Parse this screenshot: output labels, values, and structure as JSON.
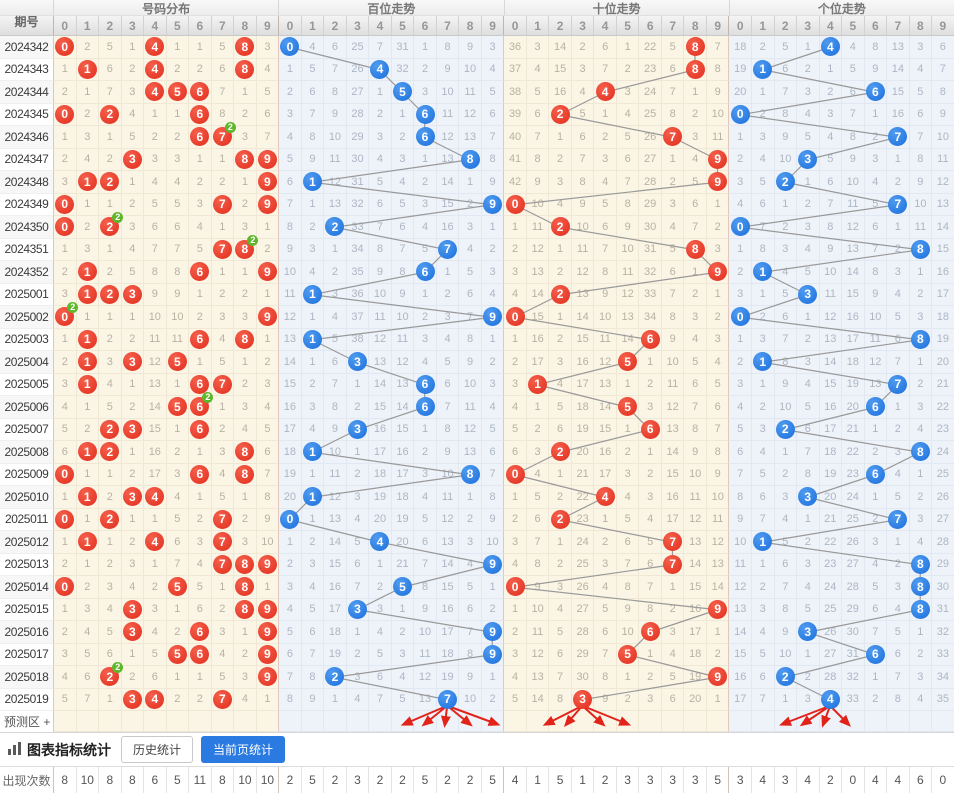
{
  "header": {
    "issue_col": "期号",
    "digits": [
      "0",
      "1",
      "2",
      "3",
      "4",
      "5",
      "6",
      "7",
      "8",
      "9"
    ],
    "sections": [
      {
        "label": "号码分布"
      },
      {
        "label": "百位走势"
      },
      {
        "label": "十位走势"
      },
      {
        "label": "个位走势"
      }
    ]
  },
  "colors": {
    "red_ball": "#e93a2b",
    "blue_ball": "#2277e0",
    "green_badge": "#5eb72a",
    "trend_line": "#999999",
    "arrow_red": "#e2231a",
    "active_button": "#2b7ae2"
  },
  "dup_badge_text": "2",
  "rows": [
    {
      "issue": "2024342",
      "dist": [
        "B",
        2,
        5,
        1,
        "B",
        1,
        1,
        5,
        "B",
        3
      ],
      "bai": [
        "B",
        4,
        6,
        25,
        7,
        31,
        1,
        8,
        9,
        3
      ],
      "shi": [
        36,
        3,
        14,
        2,
        6,
        1,
        22,
        5,
        "B",
        7
      ],
      "ge": [
        18,
        2,
        5,
        1,
        "B",
        4,
        8,
        13,
        3,
        6
      ]
    },
    {
      "issue": "2024343",
      "dist": [
        1,
        "B",
        6,
        2,
        "B",
        2,
        2,
        6,
        "B",
        4
      ],
      "bai": [
        1,
        5,
        7,
        26,
        "B",
        32,
        2,
        9,
        10,
        4
      ],
      "shi": [
        37,
        4,
        15,
        3,
        7,
        2,
        23,
        6,
        "B",
        8
      ],
      "ge": [
        19,
        "B",
        6,
        2,
        1,
        5,
        9,
        14,
        4,
        7
      ]
    },
    {
      "issue": "2024344",
      "dist": [
        2,
        1,
        7,
        3,
        "B",
        "B",
        "B",
        7,
        1,
        5
      ],
      "bai": [
        2,
        6,
        8,
        27,
        1,
        "B",
        3,
        10,
        11,
        5
      ],
      "shi": [
        38,
        5,
        16,
        4,
        "B",
        3,
        24,
        7,
        1,
        9
      ],
      "ge": [
        20,
        1,
        7,
        3,
        2,
        6,
        "B",
        15,
        5,
        8
      ]
    },
    {
      "issue": "2024345",
      "dist": [
        "B",
        2,
        "B",
        4,
        1,
        1,
        "B",
        8,
        2,
        6
      ],
      "bai": [
        3,
        7,
        9,
        28,
        2,
        1,
        "B",
        11,
        12,
        6
      ],
      "shi": [
        39,
        6,
        "B",
        5,
        1,
        4,
        25,
        8,
        2,
        10
      ],
      "ge": [
        "B",
        2,
        8,
        4,
        3,
        7,
        1,
        16,
        6,
        9
      ]
    },
    {
      "issue": "2024346",
      "dup": 7,
      "dist": [
        1,
        3,
        1,
        5,
        2,
        2,
        "B",
        "B",
        3,
        7
      ],
      "bai": [
        4,
        8,
        10,
        29,
        3,
        2,
        "B",
        12,
        13,
        7
      ],
      "shi": [
        40,
        7,
        1,
        6,
        2,
        5,
        26,
        "B",
        3,
        11
      ],
      "ge": [
        1,
        3,
        9,
        5,
        4,
        8,
        2,
        "B",
        7,
        10
      ]
    },
    {
      "issue": "2024347",
      "dist": [
        2,
        4,
        2,
        "B",
        3,
        3,
        1,
        1,
        "B",
        "B"
      ],
      "bai": [
        5,
        9,
        11,
        30,
        4,
        3,
        1,
        13,
        "B",
        8
      ],
      "shi": [
        41,
        8,
        2,
        7,
        3,
        6,
        27,
        1,
        4,
        "B"
      ],
      "ge": [
        2,
        4,
        10,
        "B",
        5,
        9,
        3,
        1,
        8,
        11
      ]
    },
    {
      "issue": "2024348",
      "dist": [
        3,
        "B",
        "B",
        1,
        4,
        4,
        2,
        2,
        1,
        "B"
      ],
      "bai": [
        6,
        "B",
        12,
        31,
        5,
        4,
        2,
        14,
        1,
        9
      ],
      "shi": [
        42,
        9,
        3,
        8,
        4,
        7,
        28,
        2,
        5,
        "B"
      ],
      "ge": [
        3,
        5,
        "B",
        1,
        6,
        10,
        4,
        2,
        9,
        12
      ]
    },
    {
      "issue": "2024349",
      "dist": [
        "B",
        1,
        1,
        2,
        5,
        5,
        3,
        "B",
        2,
        "B"
      ],
      "bai": [
        7,
        1,
        13,
        32,
        6,
        5,
        3,
        15,
        2,
        "B"
      ],
      "shi": [
        "B",
        10,
        4,
        9,
        5,
        8,
        29,
        3,
        6,
        1
      ],
      "ge": [
        4,
        6,
        1,
        2,
        7,
        11,
        5,
        "B",
        10,
        13
      ]
    },
    {
      "issue": "2024350",
      "dup": 2,
      "dist": [
        "B",
        2,
        "B",
        3,
        6,
        6,
        4,
        1,
        3,
        1
      ],
      "bai": [
        8,
        2,
        "B",
        33,
        7,
        6,
        4,
        16,
        3,
        1
      ],
      "shi": [
        1,
        11,
        "B",
        10,
        6,
        9,
        30,
        4,
        7,
        2
      ],
      "ge": [
        "B",
        7,
        2,
        3,
        8,
        12,
        6,
        1,
        11,
        14
      ]
    },
    {
      "issue": "2024351",
      "dup": 8,
      "dist": [
        1,
        3,
        1,
        4,
        7,
        7,
        5,
        "B",
        "B",
        2
      ],
      "bai": [
        9,
        3,
        1,
        34,
        8,
        7,
        5,
        "B",
        4,
        2
      ],
      "shi": [
        2,
        12,
        1,
        11,
        7,
        10,
        31,
        5,
        "B",
        3
      ],
      "ge": [
        1,
        8,
        3,
        4,
        9,
        13,
        7,
        2,
        "B",
        15
      ]
    },
    {
      "issue": "2024352",
      "dist": [
        2,
        "B",
        2,
        5,
        8,
        8,
        "B",
        1,
        1,
        "B"
      ],
      "bai": [
        10,
        4,
        2,
        35,
        9,
        8,
        "B",
        1,
        5,
        3
      ],
      "shi": [
        3,
        13,
        2,
        12,
        8,
        11,
        32,
        6,
        1,
        "B"
      ],
      "ge": [
        2,
        "B",
        4,
        5,
        10,
        14,
        8,
        3,
        1,
        16
      ]
    },
    {
      "issue": "2025001",
      "dist": [
        3,
        "B",
        "B",
        "B",
        9,
        9,
        1,
        2,
        2,
        1
      ],
      "bai": [
        11,
        "B",
        3,
        36,
        10,
        9,
        1,
        2,
        6,
        4
      ],
      "shi": [
        4,
        14,
        "B",
        13,
        9,
        12,
        33,
        7,
        2,
        1
      ],
      "ge": [
        3,
        1,
        5,
        "B",
        11,
        15,
        9,
        4,
        2,
        17
      ]
    },
    {
      "issue": "2025002",
      "dup": 0,
      "dist": [
        "B",
        1,
        1,
        1,
        10,
        10,
        2,
        3,
        3,
        "B"
      ],
      "bai": [
        12,
        1,
        4,
        37,
        11,
        10,
        2,
        3,
        7,
        "B"
      ],
      "shi": [
        "B",
        15,
        1,
        14,
        10,
        13,
        34,
        8,
        3,
        2
      ],
      "ge": [
        "B",
        2,
        6,
        1,
        12,
        16,
        10,
        5,
        3,
        18
      ]
    },
    {
      "issue": "2025003",
      "dist": [
        1,
        "B",
        2,
        2,
        11,
        11,
        "B",
        4,
        "B",
        1
      ],
      "bai": [
        13,
        "B",
        5,
        38,
        12,
        11,
        3,
        4,
        8,
        1
      ],
      "shi": [
        1,
        16,
        2,
        15,
        11,
        14,
        "B",
        9,
        4,
        3
      ],
      "ge": [
        1,
        3,
        7,
        2,
        13,
        17,
        11,
        6,
        "B",
        19
      ]
    },
    {
      "issue": "2025004",
      "dist": [
        2,
        "B",
        3,
        "B",
        12,
        "B",
        1,
        5,
        1,
        2
      ],
      "bai": [
        14,
        1,
        6,
        "B",
        13,
        12,
        4,
        5,
        9,
        2
      ],
      "shi": [
        2,
        17,
        3,
        16,
        12,
        "B",
        1,
        10,
        5,
        4
      ],
      "ge": [
        2,
        "B",
        8,
        3,
        14,
        18,
        12,
        7,
        1,
        20
      ]
    },
    {
      "issue": "2025005",
      "dist": [
        3,
        "B",
        4,
        1,
        13,
        1,
        "B",
        "B",
        2,
        3
      ],
      "bai": [
        15,
        2,
        7,
        1,
        14,
        13,
        "B",
        6,
        10,
        3
      ],
      "shi": [
        3,
        "B",
        4,
        17,
        13,
        1,
        2,
        11,
        6,
        5
      ],
      "ge": [
        3,
        1,
        9,
        4,
        15,
        19,
        13,
        "B",
        2,
        21
      ]
    },
    {
      "issue": "2025006",
      "dup": 6,
      "dist": [
        4,
        1,
        5,
        2,
        14,
        "B",
        "B",
        1,
        3,
        4
      ],
      "bai": [
        16,
        3,
        8,
        2,
        15,
        14,
        "B",
        7,
        11,
        4
      ],
      "shi": [
        4,
        1,
        5,
        18,
        14,
        "B",
        3,
        12,
        7,
        6
      ],
      "ge": [
        4,
        2,
        10,
        5,
        16,
        20,
        "B",
        1,
        3,
        22
      ]
    },
    {
      "issue": "2025007",
      "dist": [
        5,
        2,
        "B",
        "B",
        15,
        1,
        "B",
        2,
        4,
        5
      ],
      "bai": [
        17,
        4,
        9,
        "B",
        16,
        15,
        1,
        8,
        12,
        5
      ],
      "shi": [
        5,
        2,
        6,
        19,
        15,
        1,
        "B",
        13,
        8,
        7
      ],
      "ge": [
        5,
        3,
        "B",
        6,
        17,
        21,
        1,
        2,
        4,
        23
      ]
    },
    {
      "issue": "2025008",
      "dist": [
        6,
        "B",
        "B",
        1,
        16,
        2,
        1,
        3,
        "B",
        6
      ],
      "bai": [
        18,
        "B",
        10,
        1,
        17,
        16,
        2,
        9,
        13,
        6
      ],
      "shi": [
        6,
        3,
        "B",
        20,
        16,
        2,
        1,
        14,
        9,
        8
      ],
      "ge": [
        6,
        4,
        1,
        7,
        18,
        22,
        2,
        3,
        "B",
        24
      ]
    },
    {
      "issue": "2025009",
      "dist": [
        "B",
        1,
        1,
        2,
        17,
        3,
        "B",
        4,
        "B",
        7
      ],
      "bai": [
        19,
        1,
        11,
        2,
        18,
        17,
        3,
        10,
        "B",
        7
      ],
      "shi": [
        "B",
        4,
        1,
        21,
        17,
        3,
        2,
        15,
        10,
        9
      ],
      "ge": [
        7,
        5,
        2,
        8,
        19,
        23,
        "B",
        4,
        1,
        25
      ]
    },
    {
      "issue": "2025010",
      "dist": [
        1,
        "B",
        2,
        "B",
        "B",
        4,
        1,
        5,
        1,
        8
      ],
      "bai": [
        20,
        "B",
        12,
        3,
        19,
        18,
        4,
        11,
        1,
        8
      ],
      "shi": [
        1,
        5,
        2,
        22,
        "B",
        4,
        3,
        16,
        11,
        10
      ],
      "ge": [
        8,
        6,
        3,
        "B",
        20,
        24,
        1,
        5,
        2,
        26
      ]
    },
    {
      "issue": "2025011",
      "dist": [
        "B",
        1,
        "B",
        1,
        1,
        5,
        2,
        "B",
        2,
        9
      ],
      "bai": [
        "B",
        1,
        13,
        4,
        20,
        19,
        5,
        12,
        2,
        9
      ],
      "shi": [
        2,
        6,
        "B",
        23,
        1,
        5,
        4,
        17,
        12,
        11
      ],
      "ge": [
        9,
        7,
        4,
        1,
        21,
        25,
        2,
        "B",
        3,
        27
      ]
    },
    {
      "issue": "2025012",
      "dist": [
        1,
        "B",
        1,
        2,
        "B",
        6,
        3,
        "B",
        3,
        10
      ],
      "bai": [
        1,
        2,
        14,
        5,
        "B",
        20,
        6,
        13,
        3,
        10
      ],
      "shi": [
        3,
        7,
        1,
        24,
        2,
        6,
        5,
        "B",
        13,
        12
      ],
      "ge": [
        10,
        "B",
        5,
        2,
        22,
        26,
        3,
        1,
        4,
        28
      ]
    },
    {
      "issue": "2025013",
      "dist": [
        2,
        1,
        2,
        3,
        1,
        7,
        4,
        "B",
        "B",
        "B"
      ],
      "bai": [
        2,
        3,
        15,
        6,
        1,
        21,
        7,
        14,
        4,
        "B"
      ],
      "shi": [
        4,
        8,
        2,
        25,
        3,
        7,
        6,
        "B",
        14,
        13
      ],
      "ge": [
        11,
        1,
        6,
        3,
        23,
        27,
        4,
        2,
        "B",
        29
      ]
    },
    {
      "issue": "2025014",
      "dist": [
        "B",
        2,
        3,
        4,
        2,
        "B",
        5,
        1,
        "B",
        1
      ],
      "bai": [
        3,
        4,
        16,
        7,
        2,
        "B",
        8,
        15,
        5,
        1
      ],
      "shi": [
        "B",
        9,
        3,
        26,
        4,
        8,
        7,
        1,
        15,
        14
      ],
      "ge": [
        12,
        2,
        7,
        4,
        24,
        28,
        5,
        3,
        "B",
        30
      ]
    },
    {
      "issue": "2025015",
      "dist": [
        1,
        3,
        4,
        "B",
        3,
        1,
        6,
        2,
        "B",
        "B"
      ],
      "bai": [
        4,
        5,
        17,
        "B",
        3,
        1,
        9,
        16,
        6,
        2
      ],
      "shi": [
        1,
        10,
        4,
        27,
        5,
        9,
        8,
        2,
        16,
        "B"
      ],
      "ge": [
        13,
        3,
        8,
        5,
        25,
        29,
        6,
        4,
        "B",
        31
      ]
    },
    {
      "issue": "2025016",
      "dist": [
        2,
        4,
        5,
        "B",
        4,
        2,
        "B",
        3,
        1,
        "B"
      ],
      "bai": [
        5,
        6,
        18,
        1,
        4,
        2,
        10,
        17,
        7,
        "B"
      ],
      "shi": [
        2,
        11,
        5,
        28,
        6,
        10,
        "B",
        3,
        17,
        1
      ],
      "ge": [
        14,
        4,
        9,
        "B",
        26,
        30,
        7,
        5,
        1,
        32
      ]
    },
    {
      "issue": "2025017",
      "dist": [
        3,
        5,
        6,
        1,
        5,
        "B",
        "B",
        4,
        2,
        "B"
      ],
      "bai": [
        6,
        7,
        19,
        2,
        5,
        3,
        11,
        18,
        8,
        "B"
      ],
      "shi": [
        3,
        12,
        6,
        29,
        7,
        "B",
        1,
        4,
        18,
        2
      ],
      "ge": [
        15,
        5,
        10,
        1,
        27,
        31,
        "B",
        6,
        2,
        33
      ]
    },
    {
      "issue": "2025018",
      "dup": 2,
      "dist": [
        4,
        6,
        "B",
        2,
        6,
        1,
        1,
        5,
        3,
        "B"
      ],
      "bai": [
        7,
        8,
        "B",
        3,
        6,
        4,
        12,
        19,
        9,
        1
      ],
      "shi": [
        4,
        13,
        7,
        30,
        8,
        1,
        2,
        5,
        19,
        "B"
      ],
      "ge": [
        16,
        6,
        "B",
        2,
        28,
        32,
        1,
        7,
        3,
        34
      ]
    },
    {
      "issue": "2025019",
      "dist": [
        5,
        7,
        1,
        "B",
        "B",
        2,
        2,
        "B",
        4,
        1
      ],
      "bai": [
        8,
        9,
        1,
        4,
        7,
        5,
        13,
        "B",
        10,
        2
      ],
      "shi": [
        5,
        14,
        8,
        "B",
        9,
        2,
        3,
        6,
        20,
        1
      ],
      "ge": [
        17,
        7,
        1,
        3,
        "B",
        33,
        2,
        8,
        4,
        35
      ]
    }
  ],
  "prediction": {
    "label": "预测区 +"
  },
  "toolbar": {
    "title": "图表指标统计",
    "history_label": "历史统计",
    "current_label": "当前页统计"
  },
  "counts": {
    "label": "出现次数",
    "dist": [
      8,
      10,
      8,
      8,
      6,
      5,
      11,
      8,
      10,
      10
    ],
    "bai": [
      2,
      5,
      2,
      3,
      2,
      2,
      5,
      2,
      2,
      5
    ],
    "shi": [
      4,
      1,
      5,
      1,
      2,
      3,
      3,
      3,
      3,
      5
    ],
    "ge": [
      3,
      4,
      3,
      4,
      2,
      0,
      4,
      4,
      6,
      0
    ]
  }
}
